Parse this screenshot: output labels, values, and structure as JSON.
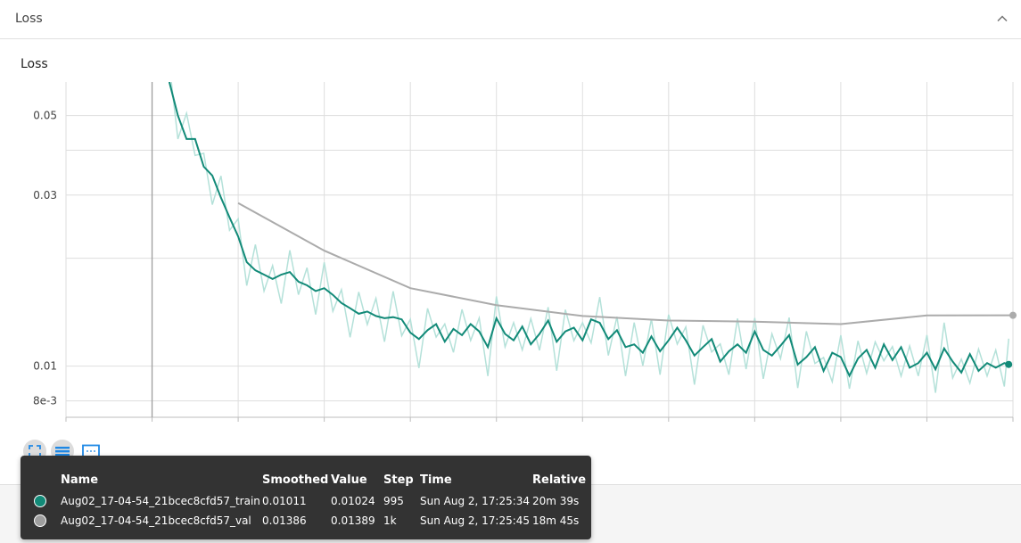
{
  "card": {
    "title": "Loss"
  },
  "colors": {
    "train": "#128a78",
    "train_raw": "#b4e1d9",
    "val": "#ababab",
    "val_raw": "#e6e6e6"
  },
  "chart_data": {
    "type": "line",
    "title": "Loss",
    "xlabel": "",
    "ylabel": "",
    "y_scale": "log",
    "ylim": [
      0.0072,
      0.062
    ],
    "xlim": [
      -100,
      1000
    ],
    "y_ticks": [
      {
        "value": 0.05,
        "label": "0.05"
      },
      {
        "value": 0.03,
        "label": "0.03"
      },
      {
        "value": 0.01,
        "label": "0.01"
      },
      {
        "value": 0.008,
        "label": "8e-3"
      }
    ],
    "grid": true,
    "series": [
      {
        "name": "Aug02_17-04-54_21bcec8cfd57_train",
        "x": [
          20,
          30,
          40,
          50,
          60,
          70,
          80,
          90,
          100,
          110,
          120,
          130,
          140,
          150,
          160,
          170,
          180,
          190,
          200,
          210,
          220,
          230,
          240,
          250,
          260,
          270,
          280,
          290,
          300,
          310,
          320,
          330,
          340,
          350,
          360,
          370,
          380,
          390,
          400,
          410,
          420,
          430,
          440,
          450,
          460,
          470,
          480,
          490,
          500,
          510,
          520,
          530,
          540,
          550,
          560,
          570,
          580,
          590,
          600,
          610,
          620,
          630,
          640,
          650,
          660,
          670,
          680,
          690,
          700,
          710,
          720,
          730,
          740,
          750,
          760,
          770,
          780,
          790,
          800,
          810,
          820,
          830,
          840,
          850,
          860,
          870,
          880,
          890,
          900,
          910,
          920,
          930,
          940,
          950,
          960,
          970,
          980,
          990,
          995
        ],
        "values": [
          0.062,
          0.05,
          0.043,
          0.043,
          0.036,
          0.034,
          0.0295,
          0.026,
          0.023,
          0.0195,
          0.0185,
          0.018,
          0.0175,
          0.018,
          0.0183,
          0.0172,
          0.0168,
          0.0162,
          0.0165,
          0.0158,
          0.015,
          0.0145,
          0.014,
          0.0142,
          0.0138,
          0.0136,
          0.0137,
          0.0135,
          0.0124,
          0.0119,
          0.0126,
          0.0131,
          0.0117,
          0.0127,
          0.0122,
          0.0131,
          0.0125,
          0.0113,
          0.0136,
          0.0123,
          0.0118,
          0.0129,
          0.0115,
          0.0123,
          0.0134,
          0.0117,
          0.0125,
          0.0128,
          0.0118,
          0.0135,
          0.0132,
          0.0119,
          0.0126,
          0.0113,
          0.0115,
          0.0109,
          0.0121,
          0.011,
          0.0118,
          0.0128,
          0.0118,
          0.0107,
          0.0113,
          0.0119,
          0.0103,
          0.011,
          0.0115,
          0.0109,
          0.0125,
          0.0111,
          0.0107,
          0.0114,
          0.0122,
          0.0101,
          0.0106,
          0.0113,
          0.0097,
          0.0109,
          0.0106,
          0.0094,
          0.0105,
          0.0111,
          0.0099,
          0.0115,
          0.0104,
          0.0113,
          0.0099,
          0.0102,
          0.0109,
          0.0098,
          0.0112,
          0.0103,
          0.0096,
          0.0108,
          0.0097,
          0.0102,
          0.0099,
          0.0102,
          0.01011
        ]
      },
      {
        "name": "Aug02_17-04-54_21bcec8cfd57_val",
        "x": [
          100,
          200,
          300,
          400,
          500,
          600,
          700,
          800,
          900,
          1000
        ],
        "values": [
          0.0285,
          0.021,
          0.0165,
          0.0148,
          0.0138,
          0.0134,
          0.0133,
          0.0131,
          0.01385,
          0.01386
        ]
      }
    ]
  },
  "toolbar": {
    "icons": [
      "fit-domain-icon",
      "toggle-log-scale-icon",
      "expand-chart-icon"
    ]
  },
  "tooltip": {
    "headers": {
      "name": "Name",
      "smoothed": "Smoothed",
      "value": "Value",
      "step": "Step",
      "time": "Time",
      "relative": "Relative"
    },
    "rows": [
      {
        "name": "Aug02_17-04-54_21bcec8cfd57_train",
        "smoothed": "0.01011",
        "value": "0.01024",
        "step": "995",
        "time": "Sun Aug 2, 17:25:34",
        "relative": "20m 39s",
        "color": "#128a78"
      },
      {
        "name": "Aug02_17-04-54_21bcec8cfd57_val",
        "smoothed": "0.01386",
        "value": "0.01389",
        "step": "1k",
        "time": "Sun Aug 2, 17:25:45",
        "relative": "18m 45s",
        "color": "#9e9e9e"
      }
    ]
  }
}
